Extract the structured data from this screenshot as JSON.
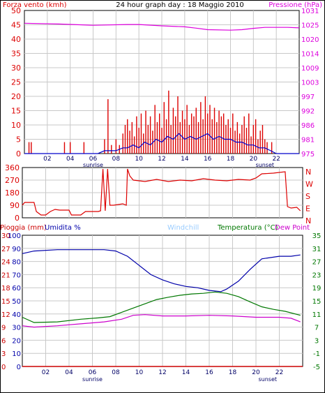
{
  "colors": {
    "wind": "#dd0000",
    "wind_avg": "#0000cc",
    "pressure": "#dd00dd",
    "humidity": "#0000aa",
    "temperature": "#007700",
    "windchill": "#99ccff",
    "dewpoint": "#cc00cc",
    "rain": "#cc0000",
    "grid": "#c8c8c8",
    "axis_label_dark": "#000066"
  },
  "header": {
    "left_label": "Forza vento (kmh)",
    "title": "24 hour graph day : 18 Maggio 2010",
    "right_label": "Pressione (hPa)"
  },
  "x_axis": {
    "ticks": [
      "02",
      "04",
      "06",
      "08",
      "10",
      "12",
      "14",
      "16",
      "18",
      "20",
      "22"
    ],
    "tick_hours": [
      2,
      4,
      6,
      8,
      10,
      12,
      14,
      16,
      18,
      20,
      22
    ],
    "sunrise_label": "sunrise",
    "sunset_label": "sunset",
    "sunrise_hour": 6,
    "sunset_hour": 21
  },
  "lower_header": {
    "rain_label": "Pioggia (mm)",
    "humidity_label": "Umidita %",
    "windchill_label": "Windchill",
    "temperature_label": "Temperatura (°C)",
    "dewpoint_label": "Dew Point"
  },
  "chart_data": [
    {
      "type": "bar",
      "panel": "wind",
      "xlim": [
        0,
        24
      ],
      "ylim": [
        0,
        50
      ],
      "left_ticks": [
        "0",
        "5",
        "10",
        "15",
        "20",
        "25",
        "30",
        "35",
        "40",
        "45",
        "50"
      ],
      "right_ticks": [
        "975",
        "981",
        "986",
        "992",
        "997",
        "1003",
        "1009",
        "1014",
        "1020",
        "1025",
        "1031"
      ],
      "pressure_range": [
        975,
        1031
      ],
      "gusts": [
        [
          0.4,
          4
        ],
        [
          0.6,
          4
        ],
        [
          1.2,
          0
        ],
        [
          3.5,
          4
        ],
        [
          4.0,
          4
        ],
        [
          5.2,
          4
        ],
        [
          6.5,
          0
        ],
        [
          7.0,
          5
        ],
        [
          7.3,
          19
        ],
        [
          7.6,
          3
        ],
        [
          8.0,
          5
        ],
        [
          8.3,
          3
        ],
        [
          8.6,
          7
        ],
        [
          8.8,
          10
        ],
        [
          9.0,
          12
        ],
        [
          9.2,
          8
        ],
        [
          9.4,
          11
        ],
        [
          9.6,
          6
        ],
        [
          9.8,
          13
        ],
        [
          10.0,
          9
        ],
        [
          10.2,
          14
        ],
        [
          10.4,
          7
        ],
        [
          10.6,
          15
        ],
        [
          10.8,
          10
        ],
        [
          11.0,
          13
        ],
        [
          11.2,
          8
        ],
        [
          11.4,
          17
        ],
        [
          11.6,
          11
        ],
        [
          11.8,
          14
        ],
        [
          12.0,
          9
        ],
        [
          12.2,
          18
        ],
        [
          12.4,
          12
        ],
        [
          12.6,
          22
        ],
        [
          12.8,
          10
        ],
        [
          13.0,
          16
        ],
        [
          13.2,
          13
        ],
        [
          13.4,
          20
        ],
        [
          13.6,
          11
        ],
        [
          13.8,
          15
        ],
        [
          14.0,
          12
        ],
        [
          14.2,
          17
        ],
        [
          14.4,
          10
        ],
        [
          14.6,
          14
        ],
        [
          14.8,
          13
        ],
        [
          15.0,
          16
        ],
        [
          15.2,
          11
        ],
        [
          15.4,
          18
        ],
        [
          15.6,
          12
        ],
        [
          15.8,
          20
        ],
        [
          16.0,
          14
        ],
        [
          16.2,
          17
        ],
        [
          16.4,
          12
        ],
        [
          16.6,
          16
        ],
        [
          16.8,
          11
        ],
        [
          17.0,
          15
        ],
        [
          17.2,
          13
        ],
        [
          17.4,
          14
        ],
        [
          17.6,
          10
        ],
        [
          17.8,
          12
        ],
        [
          18.0,
          9
        ],
        [
          18.2,
          14
        ],
        [
          18.4,
          8
        ],
        [
          18.6,
          11
        ],
        [
          18.8,
          7
        ],
        [
          19.0,
          10
        ],
        [
          19.2,
          13
        ],
        [
          19.4,
          9
        ],
        [
          19.6,
          14
        ],
        [
          19.8,
          6
        ],
        [
          20.0,
          10
        ],
        [
          20.2,
          12
        ],
        [
          20.4,
          5
        ],
        [
          20.6,
          8
        ],
        [
          20.8,
          10
        ],
        [
          21.0,
          5
        ],
        [
          21.2,
          4
        ],
        [
          21.6,
          4
        ],
        [
          22.0,
          0
        ],
        [
          22.6,
          0
        ]
      ],
      "wind_avg": [
        [
          0,
          0
        ],
        [
          6.4,
          0
        ],
        [
          7.0,
          1
        ],
        [
          8.0,
          1
        ],
        [
          8.6,
          2
        ],
        [
          9.0,
          2
        ],
        [
          9.5,
          3
        ],
        [
          10.0,
          2
        ],
        [
          10.5,
          4
        ],
        [
          11.0,
          3
        ],
        [
          11.5,
          5
        ],
        [
          12.0,
          4
        ],
        [
          12.5,
          6
        ],
        [
          13.0,
          5
        ],
        [
          13.5,
          7
        ],
        [
          14.0,
          5
        ],
        [
          14.5,
          6
        ],
        [
          15.0,
          5
        ],
        [
          15.5,
          6
        ],
        [
          16.0,
          7
        ],
        [
          16.5,
          5
        ],
        [
          17.0,
          6
        ],
        [
          17.5,
          5
        ],
        [
          18.0,
          5
        ],
        [
          18.5,
          4
        ],
        [
          19.0,
          4
        ],
        [
          19.5,
          3
        ],
        [
          20.0,
          3
        ],
        [
          20.5,
          2
        ],
        [
          21.0,
          2
        ],
        [
          21.5,
          1
        ],
        [
          22.0,
          0
        ],
        [
          24,
          0
        ]
      ],
      "pressure": [
        [
          0,
          1026
        ],
        [
          3,
          1025.7
        ],
        [
          6,
          1025.2
        ],
        [
          9,
          1025.5
        ],
        [
          10,
          1025.5
        ],
        [
          12,
          1025
        ],
        [
          14,
          1024.6
        ],
        [
          15,
          1024.1
        ],
        [
          16,
          1023.5
        ],
        [
          18,
          1023.3
        ],
        [
          19,
          1023.5
        ],
        [
          20,
          1024.0
        ],
        [
          21,
          1024.4
        ],
        [
          23,
          1024.4
        ],
        [
          24,
          1024.2
        ]
      ]
    },
    {
      "type": "line",
      "panel": "wind-direction",
      "xlim": [
        0,
        24
      ],
      "ylim": [
        0,
        360
      ],
      "left_ticks": [
        "0",
        "90",
        "180",
        "270",
        "360"
      ],
      "right_ticks": [
        "N",
        "E",
        "S",
        "W",
        "N"
      ],
      "direction": [
        [
          0,
          90
        ],
        [
          0.2,
          110
        ],
        [
          1.0,
          110
        ],
        [
          1.2,
          45
        ],
        [
          1.6,
          20
        ],
        [
          2.0,
          20
        ],
        [
          2.4,
          45
        ],
        [
          2.8,
          60
        ],
        [
          3.2,
          55
        ],
        [
          4.0,
          55
        ],
        [
          4.2,
          20
        ],
        [
          5.0,
          20
        ],
        [
          5.4,
          45
        ],
        [
          6.5,
          45
        ],
        [
          6.7,
          50
        ],
        [
          6.9,
          350
        ],
        [
          7.1,
          50
        ],
        [
          7.3,
          350
        ],
        [
          7.5,
          90
        ],
        [
          7.8,
          90
        ],
        [
          8.6,
          100
        ],
        [
          8.9,
          90
        ],
        [
          9.0,
          350
        ],
        [
          9.2,
          300
        ],
        [
          9.5,
          270
        ],
        [
          10.5,
          260
        ],
        [
          11.5,
          275
        ],
        [
          12.5,
          260
        ],
        [
          13.5,
          270
        ],
        [
          14.5,
          265
        ],
        [
          15.5,
          280
        ],
        [
          16.5,
          270
        ],
        [
          17.5,
          265
        ],
        [
          18.5,
          275
        ],
        [
          19.5,
          270
        ],
        [
          20.0,
          285
        ],
        [
          20.5,
          315
        ],
        [
          21.5,
          320
        ],
        [
          22.5,
          330
        ],
        [
          22.7,
          80
        ],
        [
          23.0,
          70
        ],
        [
          23.5,
          75
        ],
        [
          23.8,
          50
        ]
      ]
    },
    {
      "type": "line",
      "panel": "humidity-temperature",
      "xlim": [
        0,
        24
      ],
      "left_ticks_rain": [
        "0",
        "3",
        "6",
        "9",
        "12",
        "15",
        "18",
        "21",
        "24",
        "27",
        "30"
      ],
      "left_ticks_humidity": [
        "0",
        "10",
        "20",
        "30",
        "40",
        "50",
        "60",
        "70",
        "80",
        "90",
        "100"
      ],
      "right_ticks": [
        "-5",
        "-1",
        "3",
        "7",
        "11",
        "15",
        "19",
        "23",
        "27",
        "31",
        "35"
      ],
      "humidity_range": [
        0,
        100
      ],
      "temperature_range": [
        -5,
        35
      ],
      "rain": [
        [
          0,
          0
        ],
        [
          24,
          0
        ]
      ],
      "humidity": [
        [
          0,
          86
        ],
        [
          1,
          88
        ],
        [
          3,
          89
        ],
        [
          5,
          89
        ],
        [
          7,
          89
        ],
        [
          8,
          88
        ],
        [
          9,
          84
        ],
        [
          10,
          77
        ],
        [
          11,
          70
        ],
        [
          12,
          66
        ],
        [
          13,
          63
        ],
        [
          14,
          61
        ],
        [
          15,
          60
        ],
        [
          16,
          58
        ],
        [
          17,
          57
        ],
        [
          17.5,
          59
        ],
        [
          18.5,
          65
        ],
        [
          19.5,
          74
        ],
        [
          20.5,
          82
        ],
        [
          22,
          84
        ],
        [
          23,
          84
        ],
        [
          23.8,
          85
        ]
      ],
      "temperature": [
        [
          0,
          10.0
        ],
        [
          1,
          8.4
        ],
        [
          3,
          8.6
        ],
        [
          5,
          9.4
        ],
        [
          6.5,
          9.8
        ],
        [
          7.5,
          10.2
        ],
        [
          8.5,
          11.5
        ],
        [
          9.5,
          12.8
        ],
        [
          10.5,
          14.1
        ],
        [
          11.5,
          15.4
        ],
        [
          12.5,
          16.1
        ],
        [
          13.5,
          16.7
        ],
        [
          14.5,
          17.1
        ],
        [
          15.5,
          17.3
        ],
        [
          16.5,
          17.7
        ],
        [
          17.5,
          17.3
        ],
        [
          18.5,
          16.3
        ],
        [
          19.5,
          14.7
        ],
        [
          20.5,
          13.2
        ],
        [
          21.5,
          12.4
        ],
        [
          22.5,
          11.8
        ],
        [
          23.8,
          10.6
        ]
      ],
      "dewpoint": [
        [
          0,
          7.4
        ],
        [
          1,
          7.0
        ],
        [
          3,
          7.4
        ],
        [
          5,
          8.0
        ],
        [
          7,
          8.6
        ],
        [
          8.5,
          9.4
        ],
        [
          9.5,
          10.6
        ],
        [
          10.5,
          10.8
        ],
        [
          12,
          10.4
        ],
        [
          14,
          10.4
        ],
        [
          16,
          10.6
        ],
        [
          18,
          10.4
        ],
        [
          20,
          10.0
        ],
        [
          22,
          10.0
        ],
        [
          23,
          9.7
        ],
        [
          23.8,
          8.6
        ]
      ]
    }
  ]
}
